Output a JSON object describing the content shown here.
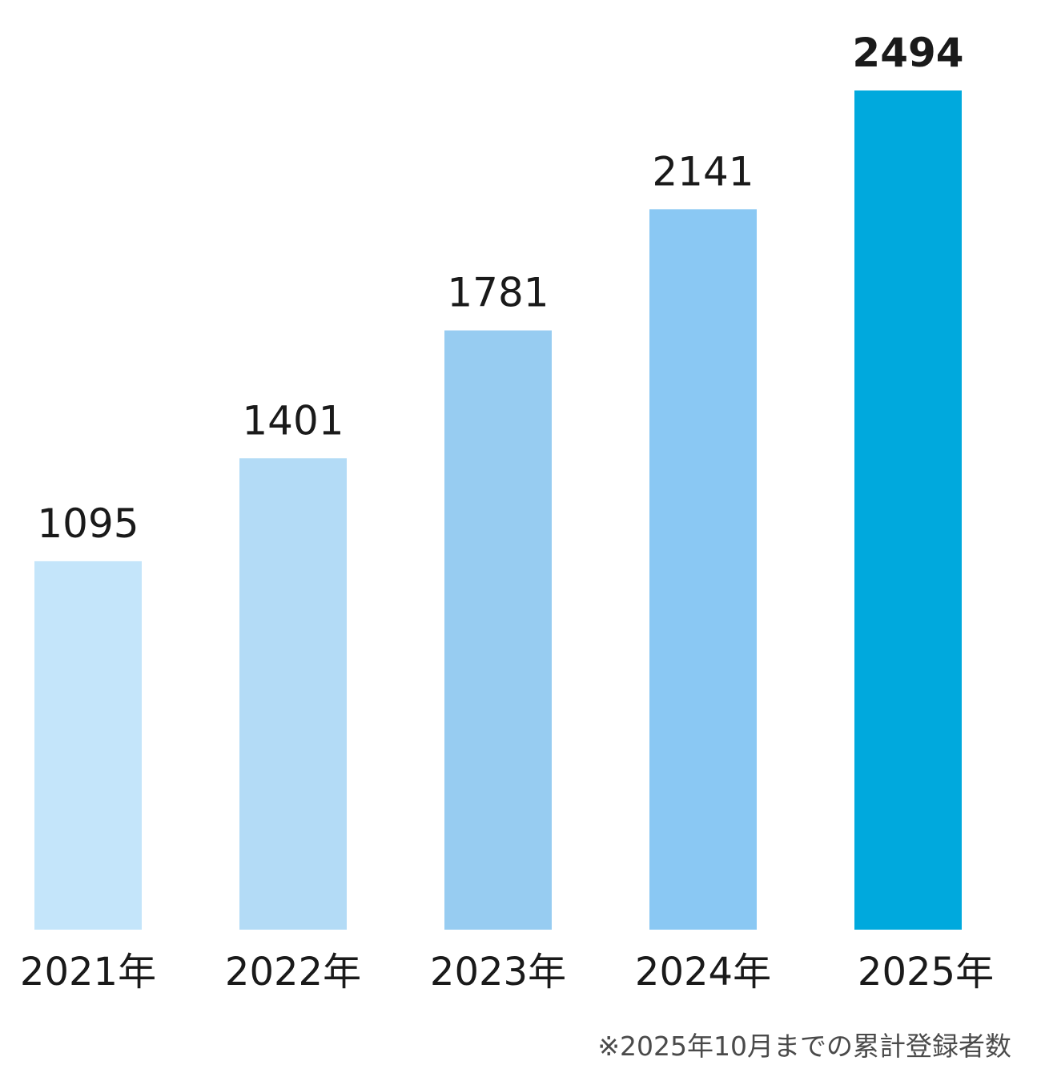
{
  "chart_data": {
    "type": "bar",
    "categories": [
      "2021年",
      "2022年",
      "2023年",
      "2024年",
      "2025年"
    ],
    "values": [
      1095,
      1401,
      1781,
      2141,
      2494
    ],
    "value_labels": [
      "1095",
      "1401",
      "1781",
      "2141",
      "2494"
    ],
    "colors": [
      "#c4e5fa",
      "#b3dbf6",
      "#97ccf1",
      "#8ac8f3",
      "#00a9dd"
    ],
    "highlight_index": 4,
    "title": "",
    "xlabel": "",
    "ylabel": "",
    "ylim": [
      0,
      2494
    ],
    "grid": false,
    "legend": "none"
  },
  "footnote": "※2025年10月までの累計登録者数"
}
